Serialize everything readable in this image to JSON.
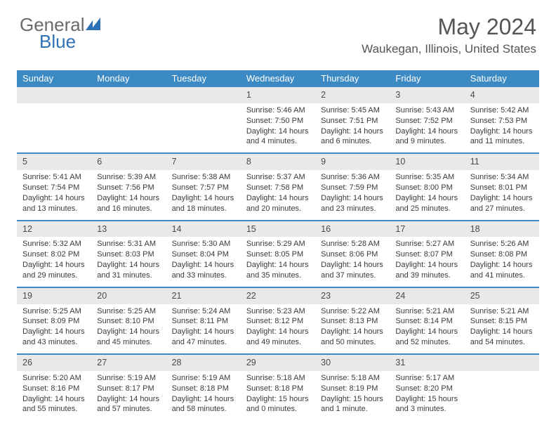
{
  "brand": {
    "part1": "General",
    "part2": "Blue"
  },
  "title": "May 2024",
  "location": "Waukegan, Illinois, United States",
  "colors": {
    "header_bg": "#3b8ac4",
    "header_text": "#ffffff",
    "daynum_bg": "#e9e9e9",
    "row_divider": "#3b8ac4",
    "body_text": "#3a3a3a",
    "title_text": "#555555",
    "page_bg": "#ffffff"
  },
  "typography": {
    "title_fontsize_pt": 24,
    "subtitle_fontsize_pt": 13,
    "header_fontsize_pt": 10,
    "cell_fontsize_pt": 8
  },
  "day_headers": [
    "Sunday",
    "Monday",
    "Tuesday",
    "Wednesday",
    "Thursday",
    "Friday",
    "Saturday"
  ],
  "weeks": [
    [
      null,
      null,
      null,
      {
        "n": "1",
        "sr": "5:46 AM",
        "ss": "7:50 PM",
        "dl": "14 hours and 4 minutes."
      },
      {
        "n": "2",
        "sr": "5:45 AM",
        "ss": "7:51 PM",
        "dl": "14 hours and 6 minutes."
      },
      {
        "n": "3",
        "sr": "5:43 AM",
        "ss": "7:52 PM",
        "dl": "14 hours and 9 minutes."
      },
      {
        "n": "4",
        "sr": "5:42 AM",
        "ss": "7:53 PM",
        "dl": "14 hours and 11 minutes."
      }
    ],
    [
      {
        "n": "5",
        "sr": "5:41 AM",
        "ss": "7:54 PM",
        "dl": "14 hours and 13 minutes."
      },
      {
        "n": "6",
        "sr": "5:39 AM",
        "ss": "7:56 PM",
        "dl": "14 hours and 16 minutes."
      },
      {
        "n": "7",
        "sr": "5:38 AM",
        "ss": "7:57 PM",
        "dl": "14 hours and 18 minutes."
      },
      {
        "n": "8",
        "sr": "5:37 AM",
        "ss": "7:58 PM",
        "dl": "14 hours and 20 minutes."
      },
      {
        "n": "9",
        "sr": "5:36 AM",
        "ss": "7:59 PM",
        "dl": "14 hours and 23 minutes."
      },
      {
        "n": "10",
        "sr": "5:35 AM",
        "ss": "8:00 PM",
        "dl": "14 hours and 25 minutes."
      },
      {
        "n": "11",
        "sr": "5:34 AM",
        "ss": "8:01 PM",
        "dl": "14 hours and 27 minutes."
      }
    ],
    [
      {
        "n": "12",
        "sr": "5:32 AM",
        "ss": "8:02 PM",
        "dl": "14 hours and 29 minutes."
      },
      {
        "n": "13",
        "sr": "5:31 AM",
        "ss": "8:03 PM",
        "dl": "14 hours and 31 minutes."
      },
      {
        "n": "14",
        "sr": "5:30 AM",
        "ss": "8:04 PM",
        "dl": "14 hours and 33 minutes."
      },
      {
        "n": "15",
        "sr": "5:29 AM",
        "ss": "8:05 PM",
        "dl": "14 hours and 35 minutes."
      },
      {
        "n": "16",
        "sr": "5:28 AM",
        "ss": "8:06 PM",
        "dl": "14 hours and 37 minutes."
      },
      {
        "n": "17",
        "sr": "5:27 AM",
        "ss": "8:07 PM",
        "dl": "14 hours and 39 minutes."
      },
      {
        "n": "18",
        "sr": "5:26 AM",
        "ss": "8:08 PM",
        "dl": "14 hours and 41 minutes."
      }
    ],
    [
      {
        "n": "19",
        "sr": "5:25 AM",
        "ss": "8:09 PM",
        "dl": "14 hours and 43 minutes."
      },
      {
        "n": "20",
        "sr": "5:25 AM",
        "ss": "8:10 PM",
        "dl": "14 hours and 45 minutes."
      },
      {
        "n": "21",
        "sr": "5:24 AM",
        "ss": "8:11 PM",
        "dl": "14 hours and 47 minutes."
      },
      {
        "n": "22",
        "sr": "5:23 AM",
        "ss": "8:12 PM",
        "dl": "14 hours and 49 minutes."
      },
      {
        "n": "23",
        "sr": "5:22 AM",
        "ss": "8:13 PM",
        "dl": "14 hours and 50 minutes."
      },
      {
        "n": "24",
        "sr": "5:21 AM",
        "ss": "8:14 PM",
        "dl": "14 hours and 52 minutes."
      },
      {
        "n": "25",
        "sr": "5:21 AM",
        "ss": "8:15 PM",
        "dl": "14 hours and 54 minutes."
      }
    ],
    [
      {
        "n": "26",
        "sr": "5:20 AM",
        "ss": "8:16 PM",
        "dl": "14 hours and 55 minutes."
      },
      {
        "n": "27",
        "sr": "5:19 AM",
        "ss": "8:17 PM",
        "dl": "14 hours and 57 minutes."
      },
      {
        "n": "28",
        "sr": "5:19 AM",
        "ss": "8:18 PM",
        "dl": "14 hours and 58 minutes."
      },
      {
        "n": "29",
        "sr": "5:18 AM",
        "ss": "8:18 PM",
        "dl": "15 hours and 0 minutes."
      },
      {
        "n": "30",
        "sr": "5:18 AM",
        "ss": "8:19 PM",
        "dl": "15 hours and 1 minute."
      },
      {
        "n": "31",
        "sr": "5:17 AM",
        "ss": "8:20 PM",
        "dl": "15 hours and 3 minutes."
      },
      null
    ]
  ],
  "labels": {
    "sunrise": "Sunrise:",
    "sunset": "Sunset:",
    "daylight": "Daylight:"
  }
}
